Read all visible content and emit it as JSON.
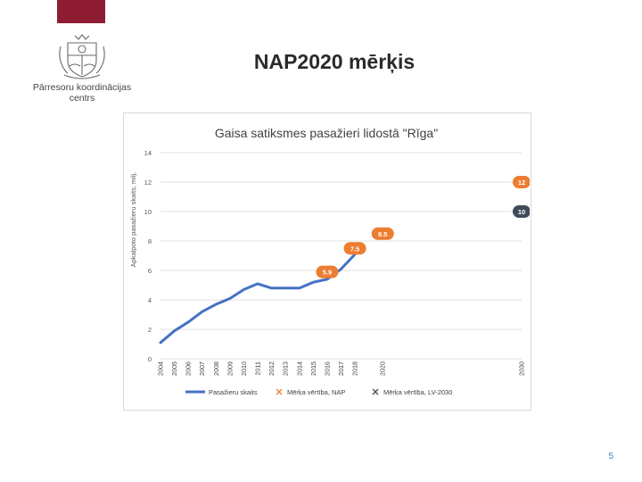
{
  "organization": {
    "line1": "Pārresoru koordinācijas",
    "line2": "centrs"
  },
  "slide": {
    "title": "NAP2020 mērķis",
    "page_number": "5"
  },
  "colors": {
    "brand": "#8e1c32",
    "series": "#4472c4",
    "target_nap": "#ed7d31",
    "target_lv2030": "#404b5a"
  },
  "icons": {
    "logo": "latvia-coat-of-arms-icon"
  },
  "chart_data": {
    "type": "line",
    "title": "Gaisa satiksmes pasažieri lidostā \"Rīga\"",
    "ylabel": "Apkalpoto pasažieru skaits, milj.",
    "xlabel": "",
    "ylim": [
      0,
      14
    ],
    "yticks": [
      0,
      2,
      4,
      6,
      8,
      10,
      12,
      14
    ],
    "xlim": [
      2004,
      2030
    ],
    "x_tick_labels": [
      "2004",
      "2005",
      "2006",
      "2007",
      "2008",
      "2009",
      "2010",
      "2011",
      "2012",
      "2013",
      "2014",
      "2015",
      "2016",
      "2017",
      "2018",
      "2020",
      "2030"
    ],
    "grid": true,
    "legend_position": "bottom",
    "series": [
      {
        "name": "Pasažieru skaits",
        "kind": "line",
        "x": [
          2004,
          2005,
          2006,
          2007,
          2008,
          2009,
          2010,
          2011,
          2012,
          2013,
          2014,
          2015,
          2016,
          2017,
          2018
        ],
        "y": [
          1.1,
          1.9,
          2.5,
          3.2,
          3.7,
          4.1,
          4.7,
          5.1,
          4.8,
          4.8,
          4.8,
          5.2,
          5.4,
          6.1,
          7.1
        ]
      },
      {
        "name": "Mērķa vērtība, NAP",
        "kind": "marker",
        "points": [
          {
            "x": 2016,
            "y": 5.9,
            "label": "5.9"
          },
          {
            "x": 2018,
            "y": 7.5,
            "label": "7.5"
          },
          {
            "x": 2020,
            "y": 8.5,
            "label": "8.5"
          },
          {
            "x": 2030,
            "y": 12,
            "label": "12"
          }
        ]
      },
      {
        "name": "Mērķa vērtība, LV-2030",
        "kind": "marker",
        "points": [
          {
            "x": 2030,
            "y": 10,
            "label": "10"
          }
        ]
      }
    ]
  }
}
